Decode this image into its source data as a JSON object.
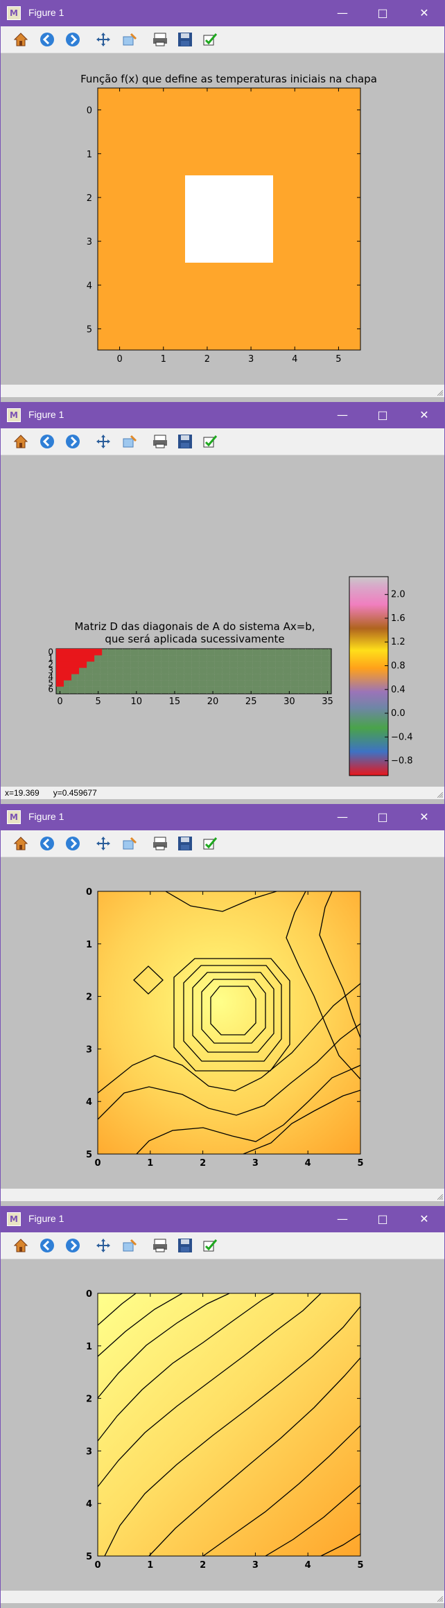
{
  "windows": [
    {
      "title": "Figure 1",
      "figure": {
        "kind": "image",
        "title": "Função f(x) que define as temperaturas iniciais na chapa",
        "xticks": [
          "0",
          "1",
          "2",
          "3",
          "4",
          "5"
        ],
        "yticks": [
          "0",
          "1",
          "2",
          "3",
          "4",
          "5"
        ]
      },
      "status": {
        "text": ""
      }
    },
    {
      "title": "Figure 1",
      "figure": {
        "kind": "matrix",
        "title_line1": "Matriz D das diagonais de A do sistema Ax=b,",
        "title_line2": "que será aplicada sucessivamente",
        "xticks": [
          "0",
          "5",
          "10",
          "15",
          "20",
          "25",
          "30",
          "35"
        ],
        "yticks": [
          "0",
          "1",
          "2",
          "3",
          "4",
          "5",
          "6"
        ],
        "colorbar_ticks": [
          "2.0",
          "1.6",
          "1.2",
          "0.8",
          "0.4",
          "0.0",
          "−0.4",
          "−0.8"
        ]
      },
      "status": {
        "text": "x=19.369      y=0.459677"
      }
    },
    {
      "title": "Figure 1",
      "figure": {
        "kind": "contour",
        "xticks": [
          "0",
          "1",
          "2",
          "3",
          "4",
          "5"
        ],
        "yticks": [
          "0",
          "1",
          "2",
          "3",
          "4",
          "5"
        ]
      },
      "status": {
        "text": ""
      }
    },
    {
      "title": "Figure 1",
      "figure": {
        "kind": "contour",
        "xticks": [
          "0",
          "1",
          "2",
          "3",
          "4",
          "5"
        ],
        "yticks": [
          "0",
          "1",
          "2",
          "3",
          "4",
          "5"
        ]
      },
      "status": {
        "text": ""
      }
    }
  ],
  "toolbar": {
    "buttons": [
      "home-icon",
      "back-icon",
      "forward-icon",
      "pan-icon",
      "zoom-icon",
      "configure-subplots-icon",
      "save-icon",
      "edit-axes-icon"
    ]
  },
  "colors": {
    "titlebar": "#7b52b3",
    "plate_orange": "#ffa62b",
    "plate_hot": "#ffffff",
    "matrix_red": "#e8161b",
    "matrix_green": "#6a8c62"
  }
}
